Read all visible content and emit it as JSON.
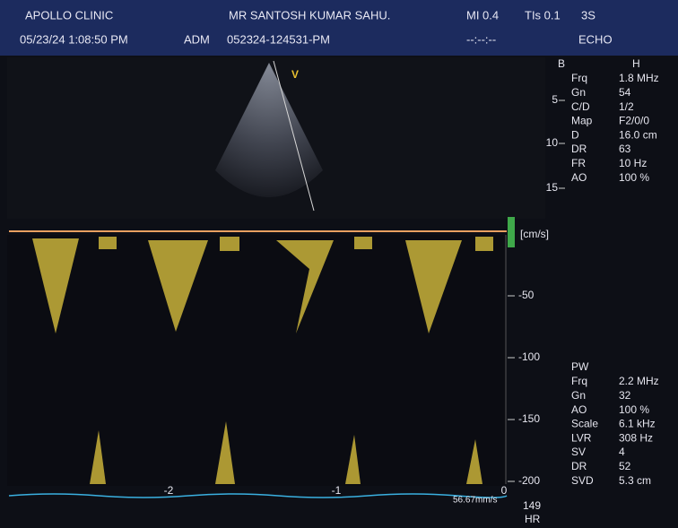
{
  "header": {
    "clinic": "APOLLO CLINIC",
    "patient": "MR SANTOSH KUMAR SAHU.",
    "mi": "MI 0.4",
    "tis": "TIs 0.1",
    "probe": "3S",
    "datetime": "05/23/24 1:08:50 PM",
    "operator": "ADM",
    "study_id": "052324-124531-PM",
    "timer": "--:--:--",
    "mode": "ECHO"
  },
  "bmode": {
    "title": "B",
    "subtitle": "H",
    "marker": "V",
    "params": [
      [
        "Frq",
        "1.8 MHz"
      ],
      [
        "Gn",
        "54"
      ],
      [
        "C/D",
        "1/2"
      ],
      [
        "Map",
        "F2/0/0"
      ],
      [
        "D",
        "16.0 cm"
      ],
      [
        "DR",
        "63"
      ],
      [
        "FR",
        "10 Hz"
      ],
      [
        "AO",
        "100 %"
      ]
    ],
    "depth_scale": [
      "5",
      "10",
      "15"
    ]
  },
  "doppler": {
    "title": "PW",
    "params": [
      [
        "Frq",
        "2.2 MHz"
      ],
      [
        "Gn",
        "32"
      ],
      [
        "AO",
        "100 %"
      ],
      [
        "Scale",
        "6.1 kHz"
      ],
      [
        "LVR",
        "308 Hz"
      ],
      [
        "SV",
        "4"
      ],
      [
        "DR",
        "52"
      ],
      [
        "SVD",
        "5.3 cm"
      ]
    ],
    "unit": "[cm/s]",
    "velocity_scale": [
      "-50",
      "-100",
      "-150",
      "-200"
    ],
    "time_scale": [
      "-2",
      "-1",
      "0"
    ],
    "sweep_speed": "56.67mm/s"
  },
  "heart_rate": {
    "value": "149",
    "label": "HR"
  }
}
